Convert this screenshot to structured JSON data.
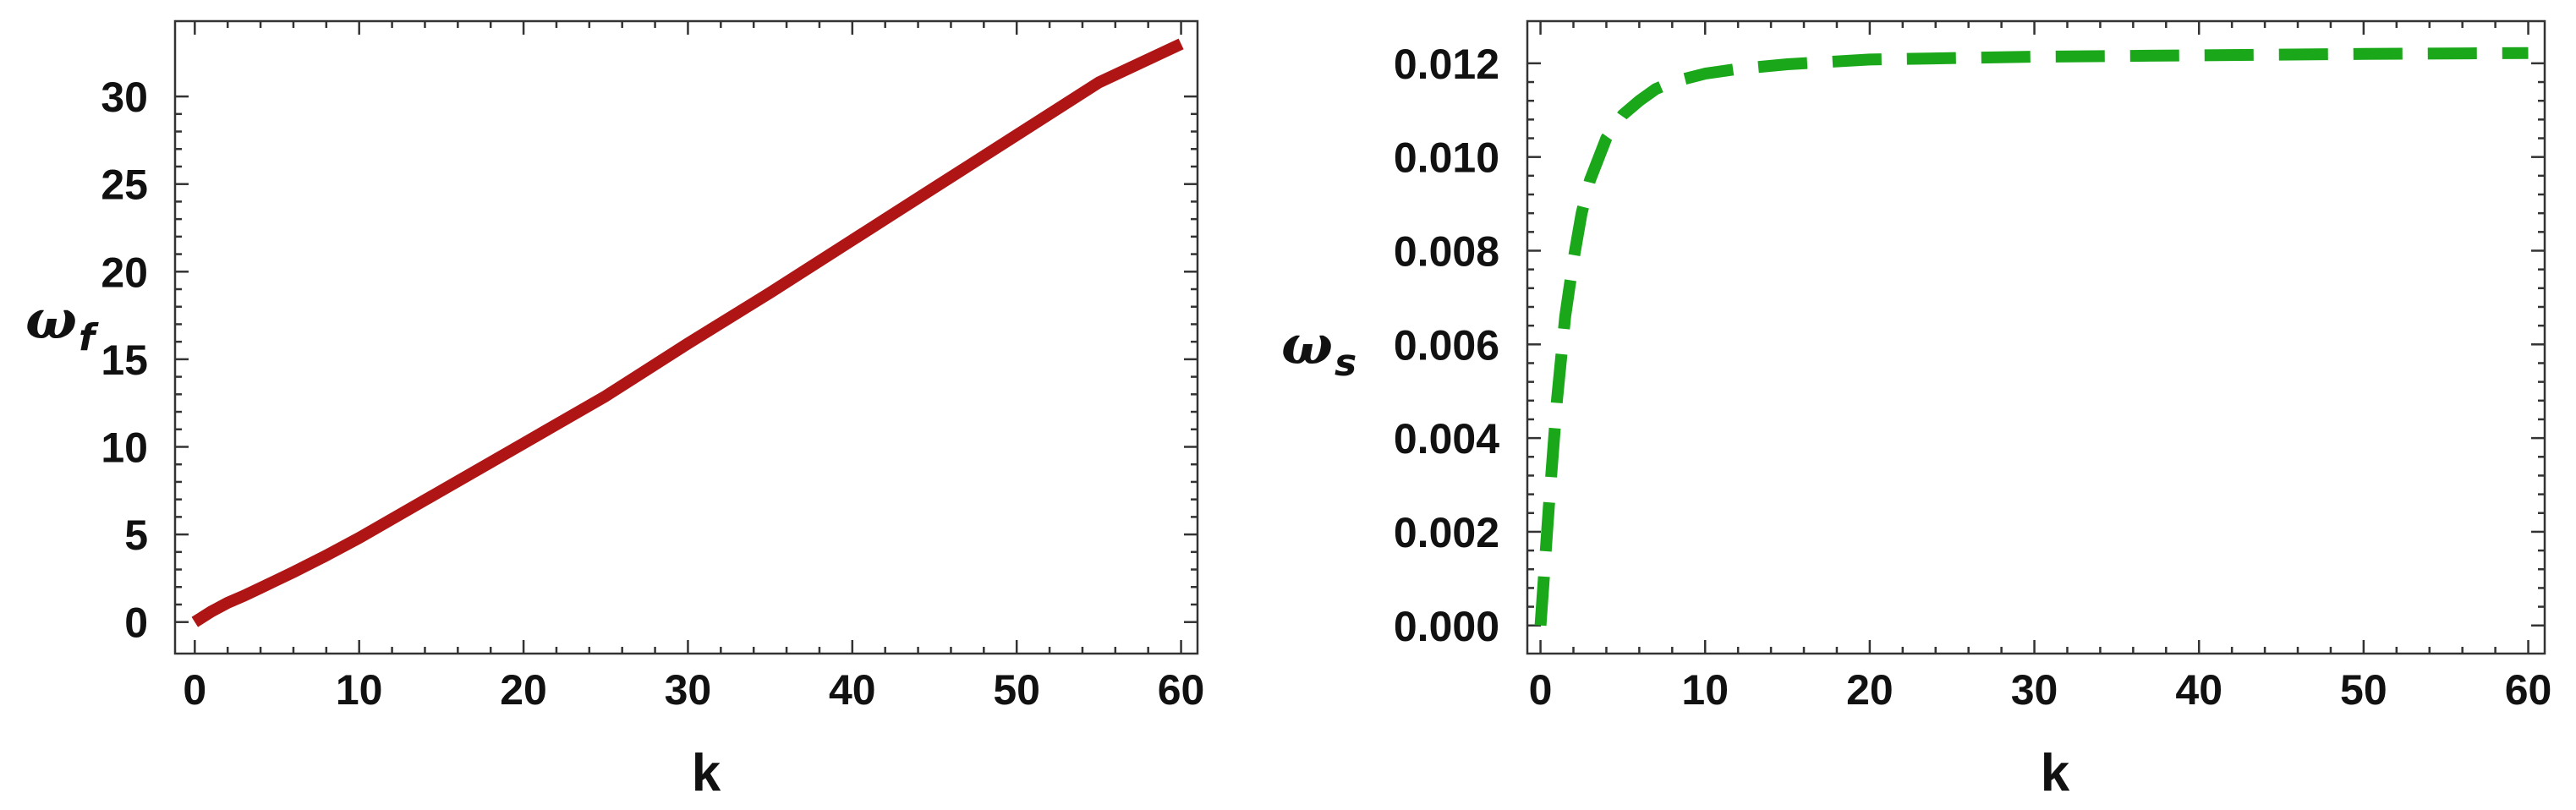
{
  "chart_data": [
    {
      "type": "line",
      "xlabel": "k",
      "ylabel": {
        "symbol": "ω",
        "subscript": "f"
      },
      "xlim": [
        -1.2,
        61
      ],
      "ylim": [
        -1.8,
        34.3
      ],
      "xticks": [
        0,
        10,
        20,
        30,
        40,
        50,
        60
      ],
      "yticks": [
        0,
        5,
        10,
        15,
        20,
        25,
        30
      ],
      "xtick_labels": [
        "0",
        "10",
        "20",
        "30",
        "40",
        "50",
        "60"
      ],
      "ytick_labels": [
        "0",
        "5",
        "10",
        "15",
        "20",
        "25",
        "30"
      ],
      "grid": false,
      "series": [
        {
          "style": "solid",
          "color": "#b01515",
          "x": [
            0,
            1,
            2,
            3,
            4,
            5,
            6,
            8,
            10,
            15,
            20,
            25,
            30,
            35,
            40,
            45,
            50,
            55,
            60
          ],
          "y": [
            0,
            0.6,
            1.1,
            1.5,
            1.95,
            2.4,
            2.85,
            3.8,
            4.8,
            7.5,
            10.2,
            12.9,
            15.9,
            18.8,
            21.8,
            24.8,
            27.8,
            30.8,
            33.0
          ]
        }
      ]
    },
    {
      "type": "line",
      "xlabel": "k",
      "ylabel": {
        "symbol": "ω",
        "subscript": "s"
      },
      "xlim": [
        -0.8,
        61
      ],
      "ylim": [
        -0.0006,
        0.0129
      ],
      "xticks": [
        0,
        10,
        20,
        30,
        40,
        50,
        60
      ],
      "yticks": [
        0,
        0.002,
        0.004,
        0.006,
        0.008,
        0.01,
        0.012
      ],
      "xtick_labels": [
        "0",
        "10",
        "20",
        "30",
        "40",
        "50",
        "60"
      ],
      "ytick_labels": [
        "0.000",
        "0.002",
        "0.004",
        "0.006",
        "0.008",
        "0.010",
        "0.012"
      ],
      "grid": false,
      "series": [
        {
          "style": "dashed",
          "color": "#1aa81a",
          "x": [
            0,
            0.5,
            1,
            1.5,
            2,
            2.5,
            3,
            4,
            5,
            6,
            7,
            8,
            10,
            12,
            15,
            20,
            30,
            40,
            50,
            60
          ],
          "y": [
            0,
            0.0025,
            0.0048,
            0.0066,
            0.0078,
            0.0088,
            0.0095,
            0.0104,
            0.0109,
            0.0112,
            0.01145,
            0.0116,
            0.01178,
            0.01188,
            0.01198,
            0.01208,
            0.01214,
            0.01217,
            0.0122,
            0.01222
          ]
        }
      ]
    }
  ]
}
